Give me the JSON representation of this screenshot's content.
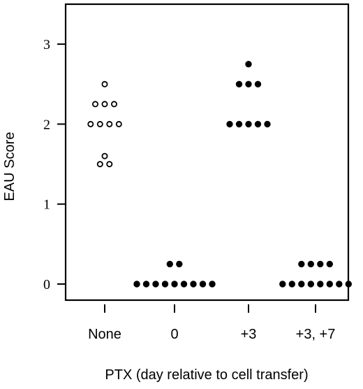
{
  "chart_data": {
    "type": "scatter",
    "title": "",
    "xlabel": "PTX (day relative to cell transfer)",
    "ylabel": "EAU Score",
    "ylim": [
      -0.2,
      3.5
    ],
    "yticks": [
      0,
      1,
      2,
      3
    ],
    "grid": false,
    "categories": [
      "None",
      "0",
      "+3",
      "+3, +7"
    ],
    "groups": [
      {
        "category": "None",
        "marker": "open-circle",
        "values": [
          2.5,
          2.25,
          2.25,
          2.25,
          2.0,
          2.0,
          2.0,
          2.0,
          1.6,
          1.5,
          1.5
        ]
      },
      {
        "category": "0",
        "marker": "filled-circle",
        "values": [
          0.25,
          0.25,
          0,
          0,
          0,
          0,
          0,
          0,
          0,
          0,
          0
        ]
      },
      {
        "category": "+3",
        "marker": "filled-circle",
        "values": [
          2.75,
          2.5,
          2.5,
          2.5,
          2.0,
          2.0,
          2.0,
          2.0,
          2.0
        ]
      },
      {
        "category": "+3, +7",
        "marker": "filled-circle",
        "values": [
          0.25,
          0.25,
          0.25,
          0.25,
          0,
          0,
          0,
          0,
          0,
          0,
          0,
          0
        ]
      }
    ]
  }
}
